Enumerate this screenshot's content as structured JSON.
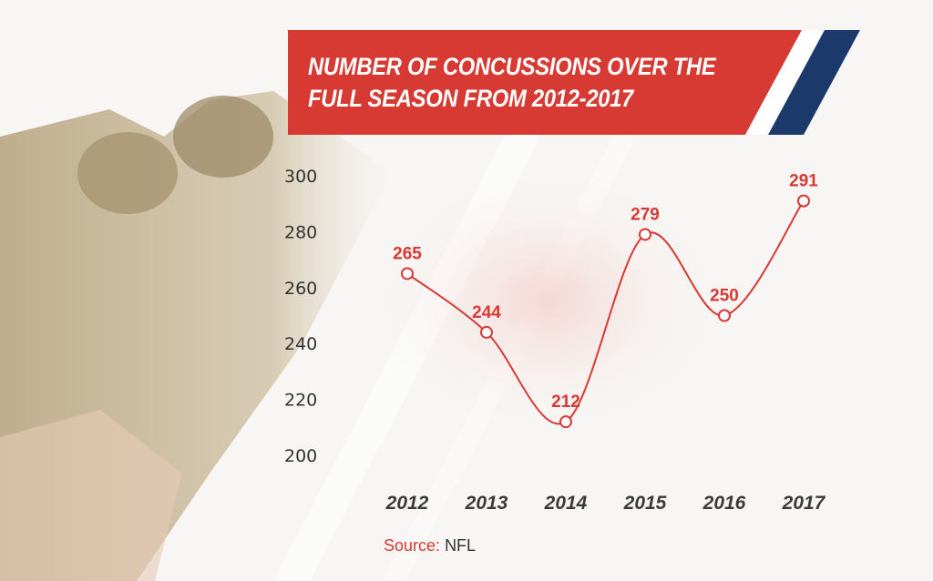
{
  "chart_data": {
    "type": "line",
    "title": "NUMBER OF CONCUSSIONS OVER THE FULL SEASON FROM 2012-2017",
    "title_lines": [
      "NUMBER OF CONCUSSIONS OVER THE",
      "FULL SEASON FROM 2012-2017"
    ],
    "categories": [
      "2012",
      "2013",
      "2014",
      "2015",
      "2016",
      "2017"
    ],
    "values": [
      265,
      244,
      212,
      279,
      250,
      291
    ],
    "yticks": [
      200,
      220,
      240,
      260,
      280,
      300
    ],
    "ylim": [
      200,
      300
    ],
    "xlabel": "",
    "ylabel": "",
    "grid": false,
    "smooth": true,
    "source_label": "Source:",
    "source_value": "NFL",
    "colors": {
      "line": "#d63a33",
      "banner": "#d63a33",
      "stripe": "#1b3a6b",
      "axis_text": "#333333",
      "category_text": "#3a3a3a"
    }
  }
}
